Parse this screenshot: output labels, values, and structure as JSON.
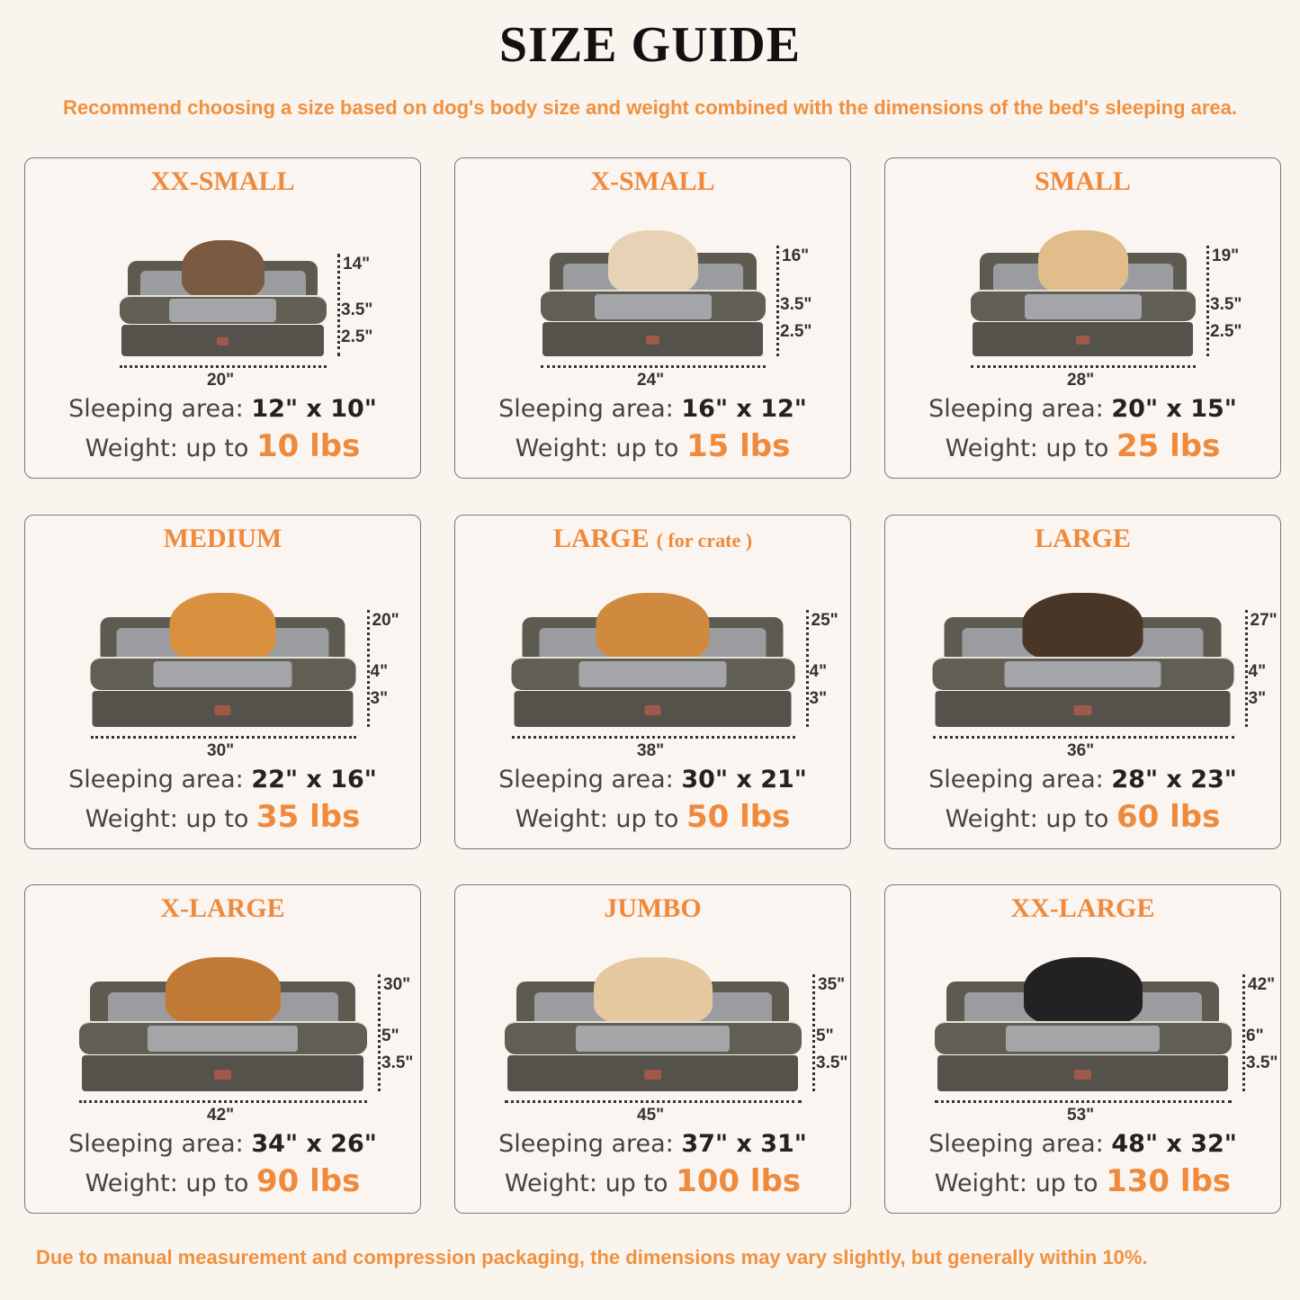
{
  "header": {
    "title": "SIZE GUIDE",
    "subtitle": "Recommend choosing a size based on dog's body size and weight combined with the dimensions of the bed's sleeping area."
  },
  "footer": "Due to manual measurement and compression packaging, the dimensions may vary slightly, but generally within 10%.",
  "colors": {
    "accent": "#ef8a3c",
    "background": "#faf4ef",
    "bed": "#5d5a50"
  },
  "cards": [
    {
      "title": "XX-SMALL",
      "note": "",
      "pet": "cat",
      "depth": "14\"",
      "side": "3.5\"",
      "base": "2.5\"",
      "width": "20\"",
      "sleep_label": "Sleeping area:",
      "sleep": "12\" x 10\"",
      "weight_label": "Weight:  up to",
      "weight": "10 lbs"
    },
    {
      "title": "X-SMALL",
      "note": "",
      "pet": "small-dog",
      "depth": "16\"",
      "side": "3.5\"",
      "base": "2.5\"",
      "width": "24\"",
      "sleep_label": "Sleeping area:",
      "sleep": "16\" x 12\"",
      "weight_label": "Weight: up to",
      "weight": "15 lbs"
    },
    {
      "title": "SMALL",
      "note": "",
      "pet": "french-bulldog",
      "depth": "19\"",
      "side": "3.5\"",
      "base": "2.5\"",
      "width": "28\"",
      "sleep_label": "Sleeping area:",
      "sleep": "20\" x 15\"",
      "weight_label": "Weight: up to",
      "weight": "25 lbs"
    },
    {
      "title": "MEDIUM",
      "note": "",
      "pet": "corgi",
      "depth": "20\"",
      "side": "4\"",
      "base": "3\"",
      "width": "30\"",
      "sleep_label": "Sleeping area:",
      "sleep": "22\" x 16\"",
      "weight_label": "Weight: up to",
      "weight": "35 lbs"
    },
    {
      "title": "LARGE",
      "note": "( for crate )",
      "pet": "shiba-inu",
      "depth": "25\"",
      "side": "4\"",
      "base": "3\"",
      "width": "38\"",
      "sleep_label": "Sleeping area:",
      "sleep": "30\" x 21\"",
      "weight_label": "Weight: up to",
      "weight": "50 lbs"
    },
    {
      "title": "LARGE",
      "note": "",
      "pet": "shepherd",
      "depth": "27\"",
      "side": "4\"",
      "base": "3\"",
      "width": "36\"",
      "sleep_label": "Sleeping area:",
      "sleep": "28\" x 23\"",
      "weight_label": "Weight: up to",
      "weight": "60 lbs"
    },
    {
      "title": "X-LARGE",
      "note": "",
      "pet": "golden-retriever",
      "depth": "30\"",
      "side": "5\"",
      "base": "3.5\"",
      "width": "42\"",
      "sleep_label": "Sleeping area:",
      "sleep": "34\" x 26\"",
      "weight_label": "Weight: up to",
      "weight": "90 lbs"
    },
    {
      "title": "JUMBO",
      "note": "",
      "pet": "labrador",
      "depth": "35\"",
      "side": "5\"",
      "base": "3.5\"",
      "width": "45\"",
      "sleep_label": "Sleeping area:",
      "sleep": "37\" x 31\"",
      "weight_label": "Weight: up to",
      "weight": "100 lbs"
    },
    {
      "title": "XX-LARGE",
      "note": "",
      "pet": "rottweiler",
      "depth": "42\"",
      "side": "6\"",
      "base": "3.5\"",
      "width": "53\"",
      "sleep_label": "Sleeping area:",
      "sleep": "48\" x 32\"",
      "weight_label": "Weight: up to",
      "weight": "130 lbs"
    }
  ]
}
